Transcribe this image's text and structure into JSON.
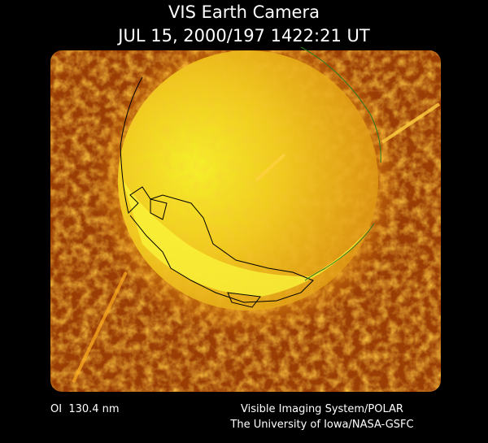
{
  "header": {
    "title": "VIS Earth Camera",
    "timestamp": "JUL 15, 2000/197 1422:21 UT"
  },
  "footer": {
    "filter": "OI  130.4 nm",
    "instrument": "Visible Imaging System/POLAR",
    "credit": "The University of Iowa/NASA-GSFC"
  }
}
